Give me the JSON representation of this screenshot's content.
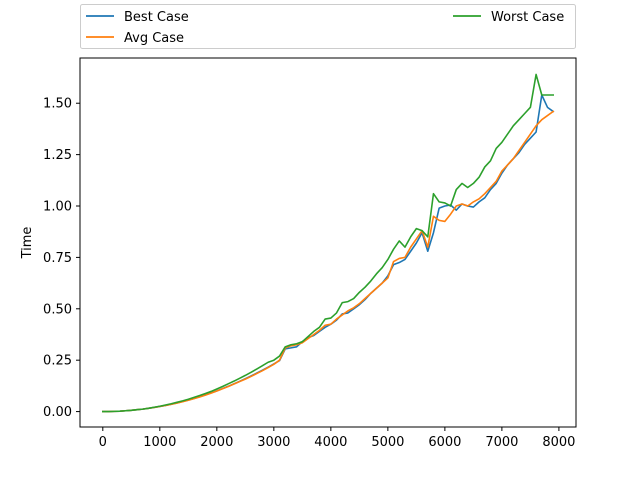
{
  "chart_data": {
    "type": "line",
    "title": "",
    "xlabel": "",
    "ylabel": "Time",
    "xlim": [
      -400,
      8300
    ],
    "ylim": [
      -0.075,
      1.72
    ],
    "xticks": [
      0,
      1000,
      2000,
      3000,
      4000,
      5000,
      6000,
      7000,
      8000
    ],
    "yticks": [
      0.0,
      0.25,
      0.5,
      0.75,
      1.0,
      1.25,
      1.5
    ],
    "xtick_labels": [
      "0",
      "1000",
      "2000",
      "3000",
      "4000",
      "5000",
      "6000",
      "7000",
      "8000"
    ],
    "ytick_labels": [
      "0.00",
      "0.25",
      "0.50",
      "0.75",
      "1.00",
      "1.25",
      "1.50"
    ],
    "grid": false,
    "legend_placement": "above plot, two columns",
    "x": [
      0,
      100,
      200,
      300,
      400,
      500,
      600,
      700,
      800,
      900,
      1000,
      1100,
      1200,
      1300,
      1400,
      1500,
      1600,
      1700,
      1800,
      1900,
      2000,
      2100,
      2200,
      2300,
      2400,
      2500,
      2600,
      2700,
      2800,
      2900,
      3000,
      3100,
      3200,
      3300,
      3400,
      3500,
      3600,
      3700,
      3800,
      3900,
      4000,
      4100,
      4200,
      4300,
      4400,
      4500,
      4600,
      4700,
      4800,
      4900,
      5000,
      5100,
      5200,
      5300,
      5400,
      5500,
      5600,
      5700,
      5800,
      5900,
      6000,
      6100,
      6200,
      6300,
      6400,
      6500,
      6600,
      6700,
      6800,
      6900,
      7000,
      7100,
      7200,
      7300,
      7400,
      7500,
      7600,
      7700,
      7800,
      7900
    ],
    "series": [
      {
        "name": "Best Case",
        "color": "#1f77b4",
        "values": [
          0.0,
          0.0,
          0.001,
          0.002,
          0.004,
          0.006,
          0.009,
          0.012,
          0.016,
          0.02,
          0.025,
          0.03,
          0.036,
          0.042,
          0.049,
          0.056,
          0.064,
          0.073,
          0.082,
          0.091,
          0.101,
          0.112,
          0.123,
          0.135,
          0.147,
          0.16,
          0.173,
          0.187,
          0.201,
          0.216,
          0.232,
          0.248,
          0.305,
          0.31,
          0.315,
          0.34,
          0.36,
          0.37,
          0.39,
          0.41,
          0.425,
          0.445,
          0.475,
          0.48,
          0.5,
          0.52,
          0.545,
          0.575,
          0.6,
          0.625,
          0.66,
          0.715,
          0.725,
          0.74,
          0.78,
          0.82,
          0.87,
          0.78,
          0.87,
          0.99,
          1.0,
          1.005,
          0.98,
          1.01,
          1.0,
          0.995,
          1.02,
          1.04,
          1.08,
          1.11,
          1.16,
          1.2,
          1.23,
          1.26,
          1.3,
          1.33,
          1.36,
          1.54,
          1.48,
          1.46
        ]
      },
      {
        "name": "Avg Case",
        "color": "#ff7f0e",
        "values": [
          0.0,
          0.0,
          0.001,
          0.002,
          0.004,
          0.006,
          0.009,
          0.012,
          0.016,
          0.02,
          0.025,
          0.03,
          0.035,
          0.041,
          0.048,
          0.055,
          0.063,
          0.071,
          0.08,
          0.09,
          0.1,
          0.111,
          0.122,
          0.134,
          0.146,
          0.158,
          0.171,
          0.185,
          0.199,
          0.214,
          0.23,
          0.25,
          0.31,
          0.32,
          0.325,
          0.335,
          0.355,
          0.375,
          0.395,
          0.42,
          0.425,
          0.45,
          0.47,
          0.49,
          0.505,
          0.525,
          0.55,
          0.575,
          0.6,
          0.625,
          0.65,
          0.73,
          0.745,
          0.75,
          0.8,
          0.84,
          0.88,
          0.8,
          0.95,
          0.93,
          0.925,
          0.96,
          1.0,
          1.01,
          1.0,
          1.02,
          1.035,
          1.06,
          1.09,
          1.12,
          1.17,
          1.2,
          1.23,
          1.27,
          1.31,
          1.35,
          1.39,
          1.42,
          1.44,
          1.46
        ]
      },
      {
        "name": "Worst Case",
        "color": "#2ca02c",
        "values": [
          0.0,
          0.0,
          0.001,
          0.002,
          0.004,
          0.006,
          0.009,
          0.012,
          0.016,
          0.021,
          0.026,
          0.032,
          0.038,
          0.045,
          0.052,
          0.06,
          0.069,
          0.078,
          0.088,
          0.098,
          0.11,
          0.122,
          0.135,
          0.148,
          0.162,
          0.176,
          0.191,
          0.207,
          0.223,
          0.24,
          0.25,
          0.27,
          0.315,
          0.325,
          0.33,
          0.34,
          0.365,
          0.39,
          0.41,
          0.45,
          0.455,
          0.48,
          0.53,
          0.535,
          0.55,
          0.58,
          0.605,
          0.635,
          0.67,
          0.7,
          0.74,
          0.79,
          0.83,
          0.8,
          0.85,
          0.89,
          0.88,
          0.85,
          1.06,
          1.02,
          1.015,
          1.0,
          1.08,
          1.11,
          1.09,
          1.11,
          1.14,
          1.19,
          1.22,
          1.28,
          1.31,
          1.35,
          1.39,
          1.42,
          1.45,
          1.48,
          1.64,
          1.54,
          1.54,
          1.54
        ]
      }
    ]
  }
}
